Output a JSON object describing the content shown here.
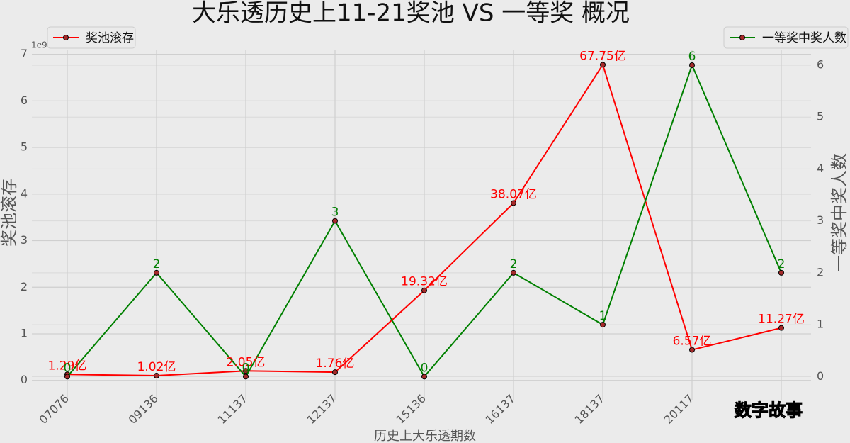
{
  "chart_data": {
    "type": "line",
    "title": "大乐透历史上11-21奖池 VS 一等奖 概况",
    "x_label": "历史上大乐透期数",
    "y_label": "奖池滚存",
    "y2_label": "一等奖中奖人数",
    "y_offset_text": "1e9",
    "watermark": "数字故事",
    "categories": [
      "07076",
      "09136",
      "11137",
      "12137",
      "15136",
      "16137",
      "18137",
      "20117",
      null
    ],
    "series": [
      {
        "name": "奖池滚存",
        "color": "#ff0000",
        "axis": "y",
        "legend": "upper left",
        "values": [
          0.129,
          0.102,
          0.205,
          0.176,
          1.932,
          3.807,
          6.775,
          0.657,
          1.127
        ],
        "value_labels": [
          "1.29亿",
          "1.02亿",
          "2.05亿",
          "1.76亿",
          "19.32亿",
          "38.07亿",
          "67.75亿",
          "6.57亿",
          "11.27亿"
        ]
      },
      {
        "name": "一等奖中奖人数",
        "color": "#008000",
        "axis": "y2",
        "legend": "upper right",
        "values": [
          0,
          2,
          0,
          3,
          0,
          2,
          1,
          6,
          2
        ]
      }
    ],
    "ylim": [
      -0.43,
      7.1
    ],
    "yticks": [
      0,
      1,
      2,
      3,
      4,
      5,
      6,
      7
    ],
    "y2lim": [
      -0.46,
      6.3
    ],
    "y2ticks": [
      0,
      1,
      2,
      3,
      4,
      5,
      6
    ],
    "grid": true
  }
}
